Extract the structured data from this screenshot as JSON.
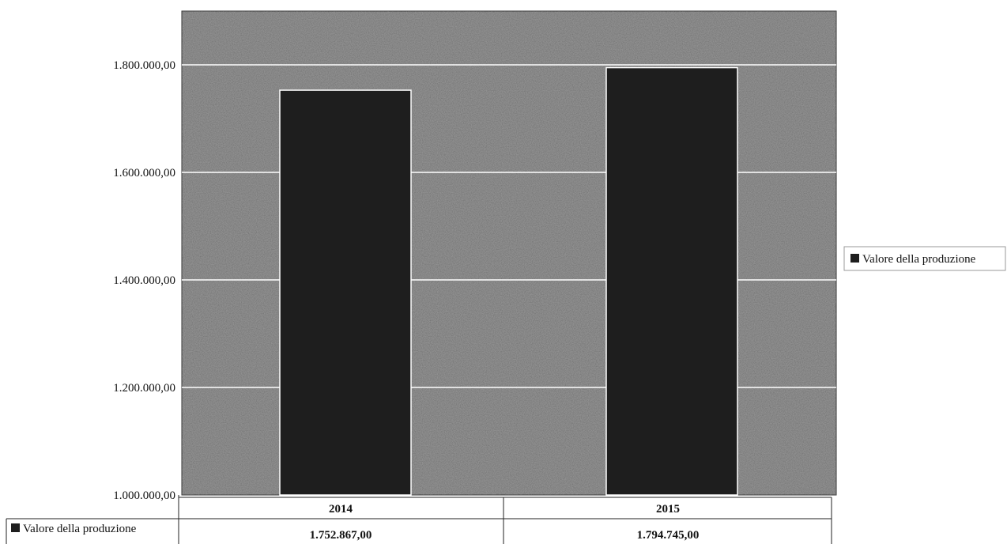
{
  "chart_data": {
    "type": "bar",
    "categories": [
      "2014",
      "2015"
    ],
    "series": [
      {
        "name": "Valore della produzione",
        "values": [
          1752867.0,
          1794745.0
        ]
      }
    ],
    "ylim": [
      1000000,
      1900000
    ],
    "yticks": [
      1000000,
      1200000,
      1400000,
      1600000,
      1800000
    ],
    "ytick_labels": [
      "1.000.000,00",
      "1.200.000,00",
      "1.400.000,00",
      "1.600.000,00",
      "1.800.000,00"
    ],
    "data_table": {
      "row_label": "Valore della produzione",
      "values_text": [
        "1.752.867,00",
        "1.794.745,00"
      ]
    },
    "legend_placement": "right",
    "grid": true,
    "colors": {
      "bar": "#1e1e1e",
      "plot_background": "#8f8f8f",
      "gridline": "#ffffff"
    }
  }
}
